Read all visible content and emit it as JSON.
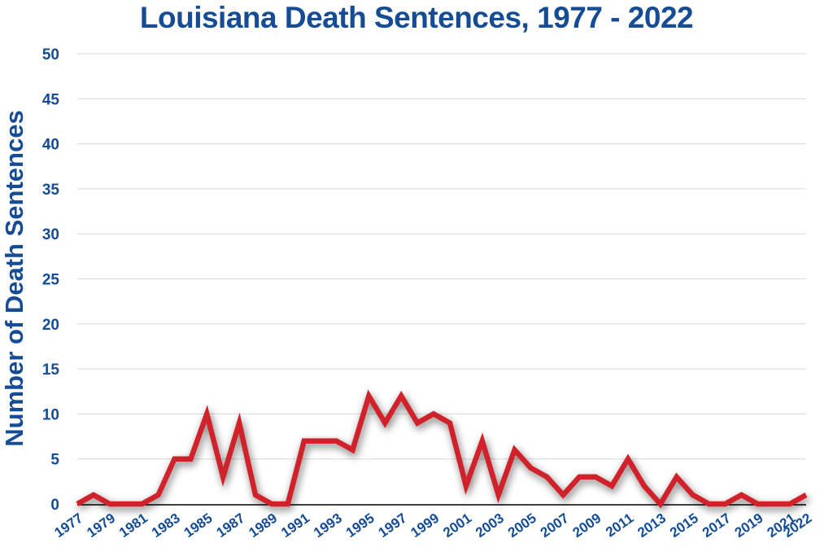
{
  "chart_data": {
    "type": "line",
    "title": "Louisiana Death Sentences, 1977 - 2022",
    "xlabel": "",
    "ylabel": "Number of Death Sentences",
    "ylim": [
      0,
      50
    ],
    "yticks": [
      0,
      5,
      10,
      15,
      20,
      25,
      30,
      35,
      40,
      45,
      50
    ],
    "x": [
      1977,
      1978,
      1979,
      1980,
      1981,
      1982,
      1983,
      1984,
      1985,
      1986,
      1987,
      1988,
      1989,
      1990,
      1991,
      1992,
      1993,
      1994,
      1995,
      1996,
      1997,
      1998,
      1999,
      2000,
      2001,
      2002,
      2003,
      2004,
      2005,
      2006,
      2007,
      2008,
      2009,
      2010,
      2011,
      2012,
      2013,
      2014,
      2015,
      2016,
      2017,
      2018,
      2019,
      2020,
      2021,
      2022
    ],
    "xtick_labels": [
      "1977",
      "1979",
      "1981",
      "1983",
      "1985",
      "1987",
      "1989",
      "1991",
      "1993",
      "1995",
      "1997",
      "1999",
      "2001",
      "2003",
      "2005",
      "2007",
      "2009",
      "2011",
      "2013",
      "2015",
      "2017",
      "2019",
      "2021",
      "2022"
    ],
    "series": [
      {
        "values": [
          0,
          1,
          0,
          0,
          0,
          1,
          5,
          5,
          10,
          3,
          9,
          1,
          0,
          0,
          7,
          7,
          7,
          6,
          12,
          9,
          12,
          9,
          10,
          9,
          2,
          7,
          1,
          6,
          4,
          3,
          1,
          3,
          3,
          2,
          5,
          2,
          0,
          3,
          1,
          0,
          0,
          1,
          0,
          0,
          0,
          1
        ]
      }
    ],
    "grid": true,
    "colors": {
      "line": "#d0212a",
      "text": "#154c94",
      "grid": "#d9d9d9",
      "axis": "#000000"
    }
  }
}
